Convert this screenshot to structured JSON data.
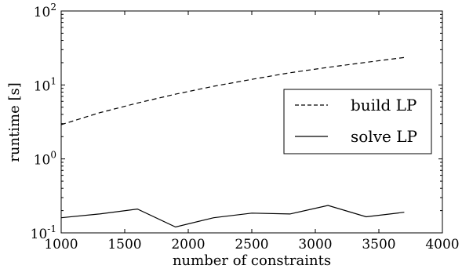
{
  "chart_data": {
    "type": "line",
    "title": "",
    "xlabel": "number of constraints",
    "ylabel": "runtime [s]",
    "xlim": [
      1000,
      4000
    ],
    "ylim": [
      0.1,
      100
    ],
    "yscale": "log",
    "grid": false,
    "legend_position": "center-right",
    "x_ticks": [
      1000,
      1500,
      2000,
      2500,
      3000,
      3500,
      4000
    ],
    "x_tick_labels": [
      "1000",
      "1500",
      "2000",
      "2500",
      "3000",
      "3500",
      "4000"
    ],
    "y_ticks": [
      0.1,
      1,
      10,
      100
    ],
    "y_tick_labels": [
      {
        "base": "10",
        "exp": "-1"
      },
      {
        "base": "10",
        "exp": "0"
      },
      {
        "base": "10",
        "exp": "1"
      },
      {
        "base": "10",
        "exp": "2"
      }
    ],
    "series": [
      {
        "name": "build LP",
        "style": "dashed",
        "color": "#000000",
        "x": [
          1000,
          1300,
          1600,
          1900,
          2200,
          2500,
          2800,
          3100,
          3400,
          3700
        ],
        "y": [
          2.9,
          4.2,
          5.7,
          7.5,
          9.6,
          11.9,
          14.6,
          17.3,
          20.2,
          23.5
        ]
      },
      {
        "name": "solve LP",
        "style": "solid",
        "color": "#000000",
        "x": [
          1000,
          1300,
          1600,
          1900,
          2200,
          2500,
          2800,
          3100,
          3400,
          3700
        ],
        "y": [
          0.16,
          0.18,
          0.21,
          0.12,
          0.16,
          0.185,
          0.18,
          0.235,
          0.165,
          0.19
        ]
      }
    ]
  }
}
